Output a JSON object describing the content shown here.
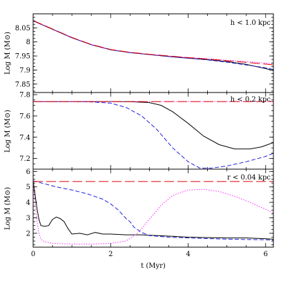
{
  "chart_data": [
    {
      "type": "line",
      "annotation": "h <  1.0 kpc",
      "ylabel": "Log M (M⊙)",
      "xlim": [
        0,
        6.2
      ],
      "ylim": [
        7.82,
        8.1
      ],
      "xticks": [
        0,
        2,
        4,
        6
      ],
      "yticks": [
        7.85,
        7.9,
        7.95,
        8,
        8.05
      ],
      "ytick_labels": [
        "7.85",
        "7.9",
        "7.95",
        "8",
        "8.05"
      ],
      "series": [
        {
          "color": "#000000",
          "dash": "solid",
          "x": [
            0,
            0.5,
            1,
            1.5,
            2,
            2.5,
            3,
            3.5,
            4,
            4.5,
            5,
            5.5,
            6,
            6.2
          ],
          "y": [
            8.075,
            8.045,
            8.015,
            7.99,
            7.972,
            7.962,
            7.955,
            7.948,
            7.942,
            7.937,
            7.93,
            7.92,
            7.905,
            7.898
          ]
        },
        {
          "color": "#1f1fe0",
          "dash": "dashed",
          "x": [
            0,
            0.5,
            1,
            1.5,
            2,
            2.5,
            3,
            3.5,
            4,
            4.5,
            5,
            5.5,
            6,
            6.2
          ],
          "y": [
            8.075,
            8.045,
            8.015,
            7.99,
            7.972,
            7.962,
            7.955,
            7.948,
            7.942,
            7.936,
            7.928,
            7.918,
            7.908,
            7.902
          ]
        },
        {
          "color": "#ff22ff",
          "dash": "dotted",
          "x": [
            0,
            0.5,
            1,
            1.5,
            2,
            2.5,
            3,
            3.5,
            4,
            4.5,
            5,
            5.5,
            6,
            6.2
          ],
          "y": [
            8.076,
            8.046,
            8.016,
            7.991,
            7.973,
            7.963,
            7.956,
            7.95,
            7.945,
            7.94,
            7.935,
            7.93,
            7.925,
            7.922
          ]
        },
        {
          "color": "#e00000",
          "dash": "longdash",
          "x": [
            0,
            0.5,
            1,
            1.5,
            2,
            2.5,
            3,
            3.5,
            4,
            4.5,
            5,
            5.5,
            6,
            6.2
          ],
          "y": [
            8.076,
            8.046,
            8.016,
            7.991,
            7.973,
            7.963,
            7.956,
            7.95,
            7.944,
            7.939,
            7.933,
            7.927,
            7.921,
            7.918
          ]
        }
      ]
    },
    {
      "type": "line",
      "annotation": "h <  0.2 kpc",
      "ylabel": "Log M (M⊙)",
      "xlim": [
        0,
        6.2
      ],
      "ylim": [
        7.1,
        7.82
      ],
      "xticks": [
        0,
        2,
        4,
        6
      ],
      "yticks": [
        7.2,
        7.4,
        7.6,
        7.8
      ],
      "ytick_labels": [
        "7.2",
        "7.4",
        "7.6",
        "7.8"
      ],
      "series": [
        {
          "color": "#000000",
          "dash": "solid",
          "x": [
            0,
            1,
            2,
            2.5,
            3,
            3.3,
            3.6,
            4,
            4.4,
            4.8,
            5.2,
            5.6,
            5.9,
            6.2
          ],
          "y": [
            7.735,
            7.735,
            7.735,
            7.734,
            7.725,
            7.7,
            7.64,
            7.53,
            7.41,
            7.33,
            7.29,
            7.29,
            7.31,
            7.35
          ]
        },
        {
          "color": "#1f1fe0",
          "dash": "dashed",
          "x": [
            0,
            1,
            1.5,
            2,
            2.4,
            2.8,
            3.2,
            3.6,
            4,
            4.3,
            4.6,
            5,
            5.5,
            6,
            6.2
          ],
          "y": [
            7.735,
            7.735,
            7.732,
            7.72,
            7.68,
            7.6,
            7.47,
            7.3,
            7.17,
            7.11,
            7.11,
            7.13,
            7.17,
            7.22,
            7.25
          ]
        },
        {
          "color": "#ff22ff",
          "dash": "dotted",
          "x": [
            0,
            6.2
          ],
          "y": [
            7.735,
            7.735
          ]
        },
        {
          "color": "#e00000",
          "dash": "longdash",
          "x": [
            0,
            6.2
          ],
          "y": [
            7.735,
            7.735
          ]
        }
      ]
    },
    {
      "type": "line",
      "annotation": "r < 0.04 kpc",
      "ylabel": "Log M (M⊙)",
      "xlabel": "t (Myr)",
      "xlim": [
        0,
        6.2
      ],
      "ylim": [
        1.1,
        6.15
      ],
      "xticks": [
        0,
        2,
        4,
        6
      ],
      "xtick_labels": [
        "0",
        "2",
        "4",
        "6"
      ],
      "yticks": [
        2,
        3,
        4,
        5,
        6
      ],
      "ytick_labels": [
        "2",
        "3",
        "4",
        "5",
        "6"
      ],
      "series": [
        {
          "color": "#000000",
          "dash": "solid",
          "x": [
            0,
            0.05,
            0.1,
            0.15,
            0.2,
            0.3,
            0.4,
            0.5,
            0.6,
            0.7,
            0.8,
            0.9,
            1.0,
            1.2,
            1.4,
            1.6,
            1.8,
            2.0,
            2.4,
            2.8,
            3.2,
            3.6,
            4.0,
            4.5,
            5.0,
            5.5,
            6.0,
            6.2
          ],
          "y": [
            5.4,
            4.5,
            3.6,
            2.9,
            2.5,
            2.45,
            2.5,
            2.9,
            3.05,
            2.95,
            2.75,
            2.3,
            1.95,
            2.0,
            1.9,
            2.05,
            1.95,
            1.95,
            1.9,
            1.9,
            1.85,
            1.8,
            1.75,
            1.72,
            1.7,
            1.7,
            1.65,
            1.62
          ]
        },
        {
          "color": "#1f1fe0",
          "dash": "dashed",
          "x": [
            0,
            0.3,
            0.6,
            1.0,
            1.4,
            1.8,
            2.0,
            2.2,
            2.4,
            2.5,
            2.6,
            2.8,
            3.0,
            3.5,
            4.0,
            5.0,
            6.0,
            6.2
          ],
          "y": [
            5.4,
            5.2,
            5.0,
            4.8,
            4.55,
            4.2,
            3.9,
            3.5,
            2.95,
            2.75,
            2.4,
            2.05,
            1.85,
            1.75,
            1.7,
            1.62,
            1.58,
            1.55
          ]
        },
        {
          "color": "#ff22ff",
          "dash": "dotted",
          "x": [
            0,
            0.05,
            0.1,
            0.15,
            0.2,
            0.3,
            0.5,
            1.0,
            1.5,
            2.0,
            2.4,
            2.7,
            3.0,
            3.3,
            3.6,
            4.0,
            4.4,
            4.8,
            5.2,
            5.6,
            6.0,
            6.2
          ],
          "y": [
            5.3,
            4.0,
            2.8,
            2.0,
            1.6,
            1.45,
            1.35,
            1.3,
            1.3,
            1.35,
            1.5,
            2.0,
            2.9,
            3.8,
            4.45,
            4.8,
            4.85,
            4.7,
            4.4,
            4.0,
            3.55,
            3.3
          ]
        },
        {
          "color": "#e00000",
          "dash": "longdash",
          "x": [
            0,
            6.2
          ],
          "y": [
            5.35,
            5.35
          ]
        }
      ]
    }
  ]
}
